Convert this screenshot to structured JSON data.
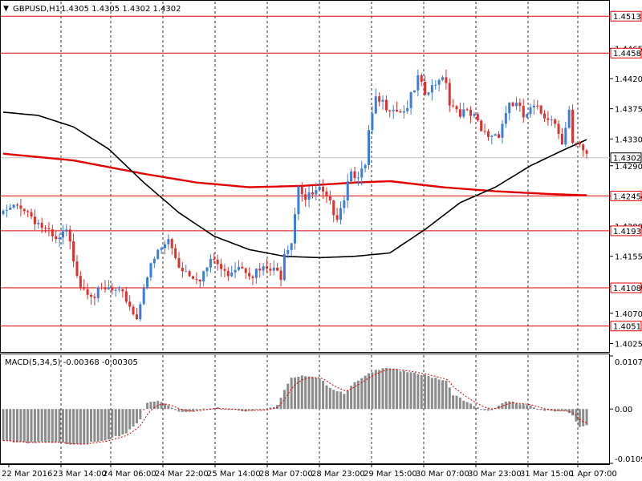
{
  "header": {
    "symbol": "GBPUSD,H1",
    "ohlc": "1.4305 1.4305 1.4302 1.4302",
    "macd_label": "MACD(5,34,5) -0.00368 -0.00305"
  },
  "colors": {
    "bull": "#3b7ddd",
    "bear": "#e0302c",
    "level": "#e00000",
    "ma_fast": "#000000",
    "ma_slow": "#e00000",
    "macd_hist": "#8c8c8c",
    "macd_signal": "#e00000",
    "grid": "#000000",
    "current": "#c0c0c0"
  },
  "chart_data": [
    {
      "type": "candlestick",
      "title": "GBPUSD,H1",
      "price_scale": [
        "1.4465",
        "1.4420",
        "1.4375",
        "1.4330",
        "1.4290",
        "1.4245",
        "1.4200",
        "1.4155",
        "1.4110",
        "1.4070",
        "1.4025"
      ],
      "ylim": [
        1.4016,
        1.453
      ],
      "time_labels": [
        "22 Mar 2016",
        "23 Mar 14:00",
        "24 Mar 06:00",
        "24 Mar 22:00",
        "25 Mar 14:00",
        "28 Mar 07:00",
        "28 Mar 23:00",
        "29 Mar 15:00",
        "30 Mar 07:00",
        "30 Mar 23:00",
        "31 Mar 15:00",
        "1 Apr 07:00"
      ],
      "grid": "vertical-dashed",
      "levels": [
        "1.4513",
        "1.4458",
        "1.4302",
        "1.4245",
        "1.4193",
        "1.4108",
        "1.4051"
      ],
      "current_price": "1.4302",
      "close_path": [
        [
          0,
          1.4218
        ],
        [
          5,
          1.4232
        ],
        [
          10,
          1.4205
        ],
        [
          15,
          1.4175
        ],
        [
          18,
          1.419
        ],
        [
          22,
          1.4115
        ],
        [
          26,
          1.4098
        ],
        [
          30,
          1.4105
        ],
        [
          35,
          1.4092
        ],
        [
          38,
          1.4062
        ],
        [
          40,
          1.4115
        ],
        [
          44,
          1.416
        ],
        [
          47,
          1.4178
        ],
        [
          50,
          1.4142
        ],
        [
          53,
          1.413
        ],
        [
          56,
          1.4125
        ],
        [
          60,
          1.415
        ],
        [
          63,
          1.4128
        ],
        [
          67,
          1.4145
        ],
        [
          71,
          1.413
        ],
        [
          75,
          1.4135
        ],
        [
          79,
          1.4128
        ],
        [
          80,
          1.4165
        ],
        [
          82,
          1.418
        ],
        [
          84,
          1.4265
        ],
        [
          86,
          1.424
        ],
        [
          90,
          1.4252
        ],
        [
          93,
          1.423
        ],
        [
          95,
          1.4218
        ],
        [
          97,
          1.4245
        ],
        [
          99,
          1.429
        ],
        [
          101,
          1.4268
        ],
        [
          103,
          1.4288
        ],
        [
          104,
          1.4338
        ],
        [
          106,
          1.4385
        ],
        [
          110,
          1.438
        ],
        [
          114,
          1.4372
        ],
        [
          117,
          1.44
        ],
        [
          118,
          1.4418
        ],
        [
          120,
          1.4395
        ],
        [
          123,
          1.4408
        ],
        [
          124,
          1.4425
        ],
        [
          126,
          1.442
        ],
        [
          127,
          1.4385
        ],
        [
          130,
          1.4372
        ],
        [
          134,
          1.436
        ],
        [
          136,
          1.434
        ],
        [
          138,
          1.4335
        ],
        [
          141,
          1.434
        ],
        [
          144,
          1.4385
        ],
        [
          146,
          1.438
        ],
        [
          148,
          1.4362
        ],
        [
          151,
          1.4375
        ],
        [
          154,
          1.4365
        ],
        [
          156,
          1.4365
        ],
        [
          159,
          1.433
        ],
        [
          161,
          1.4372
        ],
        [
          162,
          1.432
        ],
        [
          164,
          1.4315
        ],
        [
          166,
          1.4302
        ]
      ],
      "sma_fast_path": [
        [
          0,
          1.437
        ],
        [
          10,
          1.4365
        ],
        [
          20,
          1.4348
        ],
        [
          30,
          1.4315
        ],
        [
          40,
          1.4265
        ],
        [
          50,
          1.422
        ],
        [
          60,
          1.4185
        ],
        [
          70,
          1.4165
        ],
        [
          80,
          1.4155
        ],
        [
          90,
          1.4153
        ],
        [
          100,
          1.4155
        ],
        [
          110,
          1.416
        ],
        [
          120,
          1.4195
        ],
        [
          130,
          1.4235
        ],
        [
          140,
          1.4258
        ],
        [
          150,
          1.429
        ],
        [
          160,
          1.4315
        ],
        [
          166,
          1.4329
        ]
      ],
      "sma_slow_path": [
        [
          0,
          1.4308
        ],
        [
          20,
          1.4298
        ],
        [
          40,
          1.4278
        ],
        [
          55,
          1.4265
        ],
        [
          70,
          1.4258
        ],
        [
          85,
          1.426
        ],
        [
          100,
          1.4265
        ],
        [
          110,
          1.4267
        ],
        [
          125,
          1.4258
        ],
        [
          140,
          1.4252
        ],
        [
          155,
          1.4248
        ],
        [
          166,
          1.4246
        ]
      ]
    },
    {
      "type": "bar",
      "title": "MACD(5,34,5) -0.00368 -0.00305",
      "scale_labels": [
        "0.01073",
        "0.00",
        "-0.01099"
      ],
      "ylim": [
        -0.01099,
        0.01073
      ],
      "histogram_path": [
        [
          0,
          -0.0065
        ],
        [
          10,
          -0.0068
        ],
        [
          20,
          -0.007
        ],
        [
          26,
          -0.0068
        ],
        [
          30,
          -0.0063
        ],
        [
          35,
          -0.0048
        ],
        [
          39,
          -0.002
        ],
        [
          41,
          0.0012
        ],
        [
          44,
          0.0016
        ],
        [
          47,
          0.0008
        ],
        [
          50,
          -0.0005
        ],
        [
          55,
          -0.0003
        ],
        [
          60,
          0.0002
        ],
        [
          65,
          0.0001
        ],
        [
          70,
          -0.0004
        ],
        [
          75,
          -0.0002
        ],
        [
          78,
          0.001
        ],
        [
          80,
          0.004
        ],
        [
          82,
          0.0065
        ],
        [
          86,
          0.0066
        ],
        [
          90,
          0.006
        ],
        [
          94,
          0.004
        ],
        [
          97,
          0.0033
        ],
        [
          100,
          0.0052
        ],
        [
          104,
          0.007
        ],
        [
          108,
          0.0085
        ],
        [
          111,
          0.0083
        ],
        [
          114,
          0.0075
        ],
        [
          118,
          0.007
        ],
        [
          122,
          0.0065
        ],
        [
          126,
          0.0058
        ],
        [
          128,
          0.003
        ],
        [
          132,
          0.0012
        ],
        [
          136,
          -0.0001
        ],
        [
          138,
          -0.0003
        ],
        [
          140,
          0.0003
        ],
        [
          143,
          0.0016
        ],
        [
          146,
          0.0011
        ],
        [
          150,
          0.0005
        ],
        [
          154,
          -0.0002
        ],
        [
          158,
          -0.0003
        ],
        [
          160,
          -0.0005
        ],
        [
          162,
          -0.0015
        ],
        [
          164,
          -0.0038
        ],
        [
          166,
          -0.0032
        ]
      ]
    }
  ]
}
